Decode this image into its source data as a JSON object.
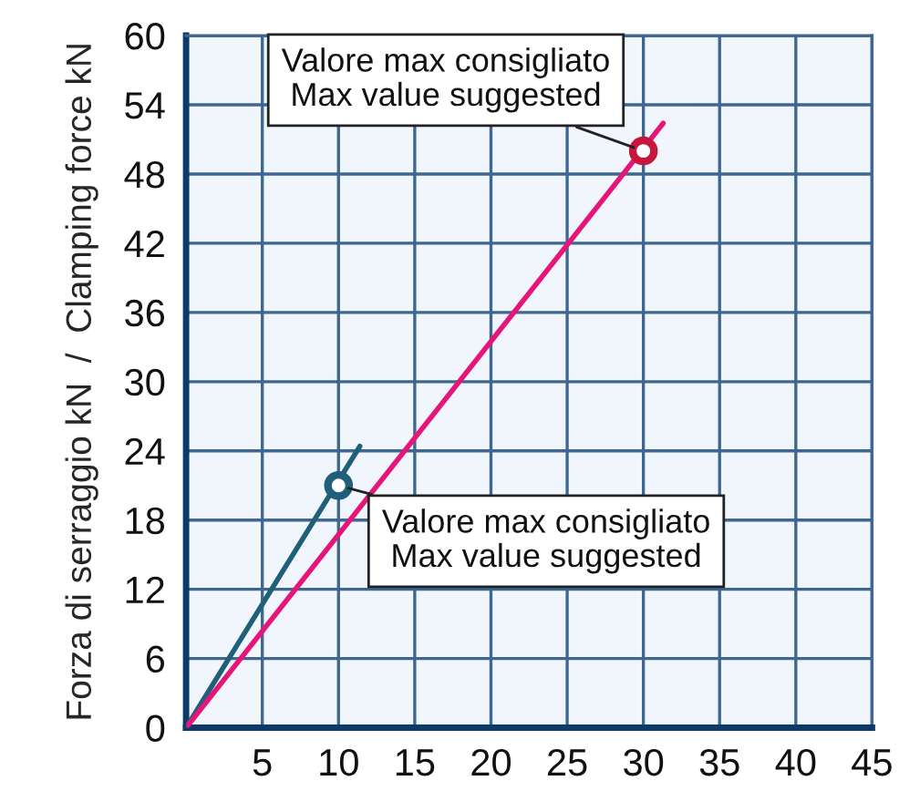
{
  "chart_data": {
    "type": "line",
    "ylabel": "Forza di serraggio kN  /  Clamping force kN",
    "xlim": [
      0,
      45
    ],
    "ylim": [
      0,
      60
    ],
    "xticks": [
      {
        "value": 0,
        "label": null
      },
      5,
      10,
      15,
      20,
      25,
      30,
      35,
      40,
      45
    ],
    "yticks": [
      0,
      6,
      12,
      18,
      24,
      30,
      36,
      42,
      48,
      54,
      60
    ],
    "grid": true,
    "line_style": "solid",
    "series": [
      {
        "color": "#1f5f7a",
        "x": [
          0,
          11.4
        ],
        "values": [
          0,
          24.4
        ]
      },
      {
        "color": "#e6157a",
        "x": [
          0,
          31.3
        ],
        "values": [
          0,
          52.4
        ]
      },
      {
        "type": "scatter",
        "marker": "circle",
        "color": "#1f5f7a",
        "x": [
          10
        ],
        "values": [
          21
        ]
      },
      {
        "type": "scatter",
        "marker": "circle",
        "color": "#c8173f",
        "x": [
          30
        ],
        "values": [
          50
        ]
      }
    ],
    "annotations": [
      {
        "text": "Valore max consigliato\nMax value suggested",
        "x": 30,
        "y": 50
      },
      {
        "text": "Valore max consigliato\nMax value suggested",
        "x": 10,
        "y": 21
      }
    ]
  }
}
